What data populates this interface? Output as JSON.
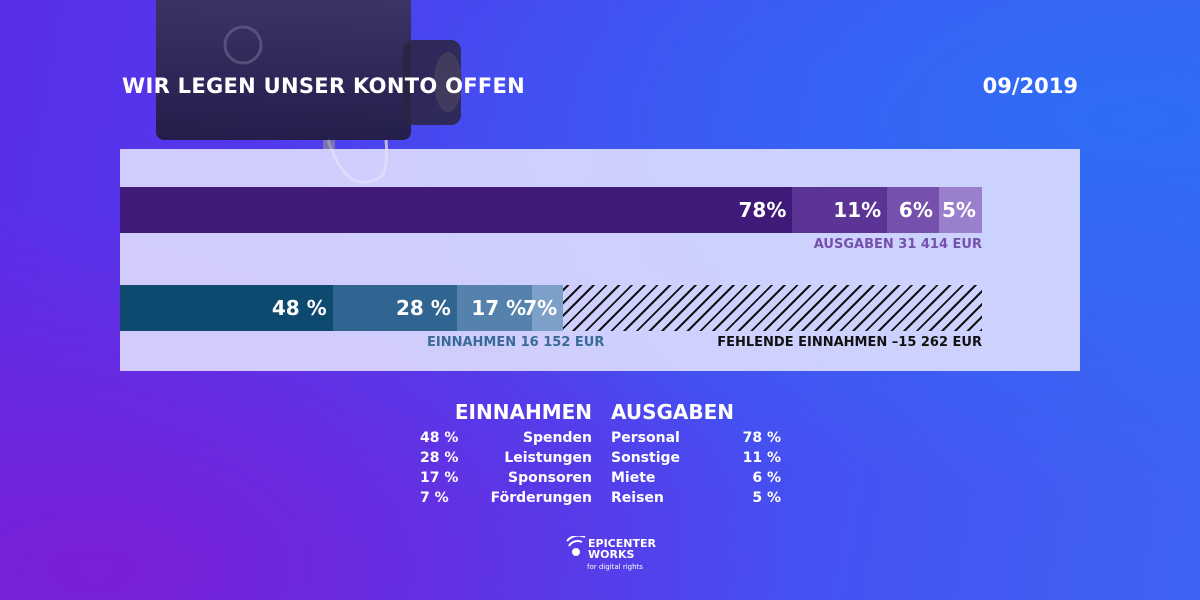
{
  "header": {
    "title": "WIR LEGEN UNSER KONTO OFFEN",
    "date": "09/2019"
  },
  "chart_data": {
    "type": "bar",
    "orientation": "horizontal-stacked",
    "series": [
      {
        "name": "AUSGABEN",
        "label": "AUSGABEN 31 414 EUR",
        "total": 31414,
        "segments": [
          {
            "category": "Personal",
            "value": 78,
            "label": "78%",
            "color": "#3f1a78"
          },
          {
            "category": "Sonstige",
            "value": 11,
            "label": "11%",
            "color": "#5b3495"
          },
          {
            "category": "Miete",
            "value": 6,
            "label": "6%",
            "color": "#7551ad"
          },
          {
            "category": "Reisen",
            "value": 5,
            "label": "5%",
            "color": "#9a7fcc"
          }
        ]
      },
      {
        "name": "EINNAHMEN",
        "label": "EINNAHMEN 16 152 EUR",
        "total": 16152,
        "segments": [
          {
            "category": "Spenden",
            "value": 48,
            "label": "48 %",
            "color": "#0e4a70"
          },
          {
            "category": "Leistungen",
            "value": 28,
            "label": "28 %",
            "color": "#2f6590"
          },
          {
            "category": "Sponsoren",
            "value": 17,
            "label": "17 %",
            "color": "#5482ad"
          },
          {
            "category": "Förderungen",
            "value": 7,
            "label": "7%",
            "color": "#7da0c8"
          }
        ]
      }
    ],
    "missing": {
      "label": "FEHLENDE EINNAHMEN –15 262 EUR",
      "value": -15262
    }
  },
  "legend": {
    "einnahmen_head": "EINNAHMEN",
    "ausgaben_head": "AUSGABEN",
    "einnahmen": [
      {
        "pct": "48 %",
        "name": "Spenden"
      },
      {
        "pct": "28 %",
        "name": "Leistungen"
      },
      {
        "pct": "17 %",
        "name": "Sponsoren"
      },
      {
        "pct": "7 %",
        "name": "Förderungen"
      }
    ],
    "ausgaben": [
      {
        "name": "Personal",
        "pct": "78 %"
      },
      {
        "name": "Sonstige",
        "pct": "11 %"
      },
      {
        "name": "Miete",
        "pct": "6 %"
      },
      {
        "name": "Reisen",
        "pct": "5 %"
      }
    ]
  },
  "logo": {
    "line1": "EPICENTER",
    "line2": "WORKS",
    "tagline": "for digital rights"
  },
  "colors": {
    "ausgaben_caption": "#7551ad",
    "einnahmen_caption": "#3a6a96",
    "missing_caption": "#111111"
  }
}
